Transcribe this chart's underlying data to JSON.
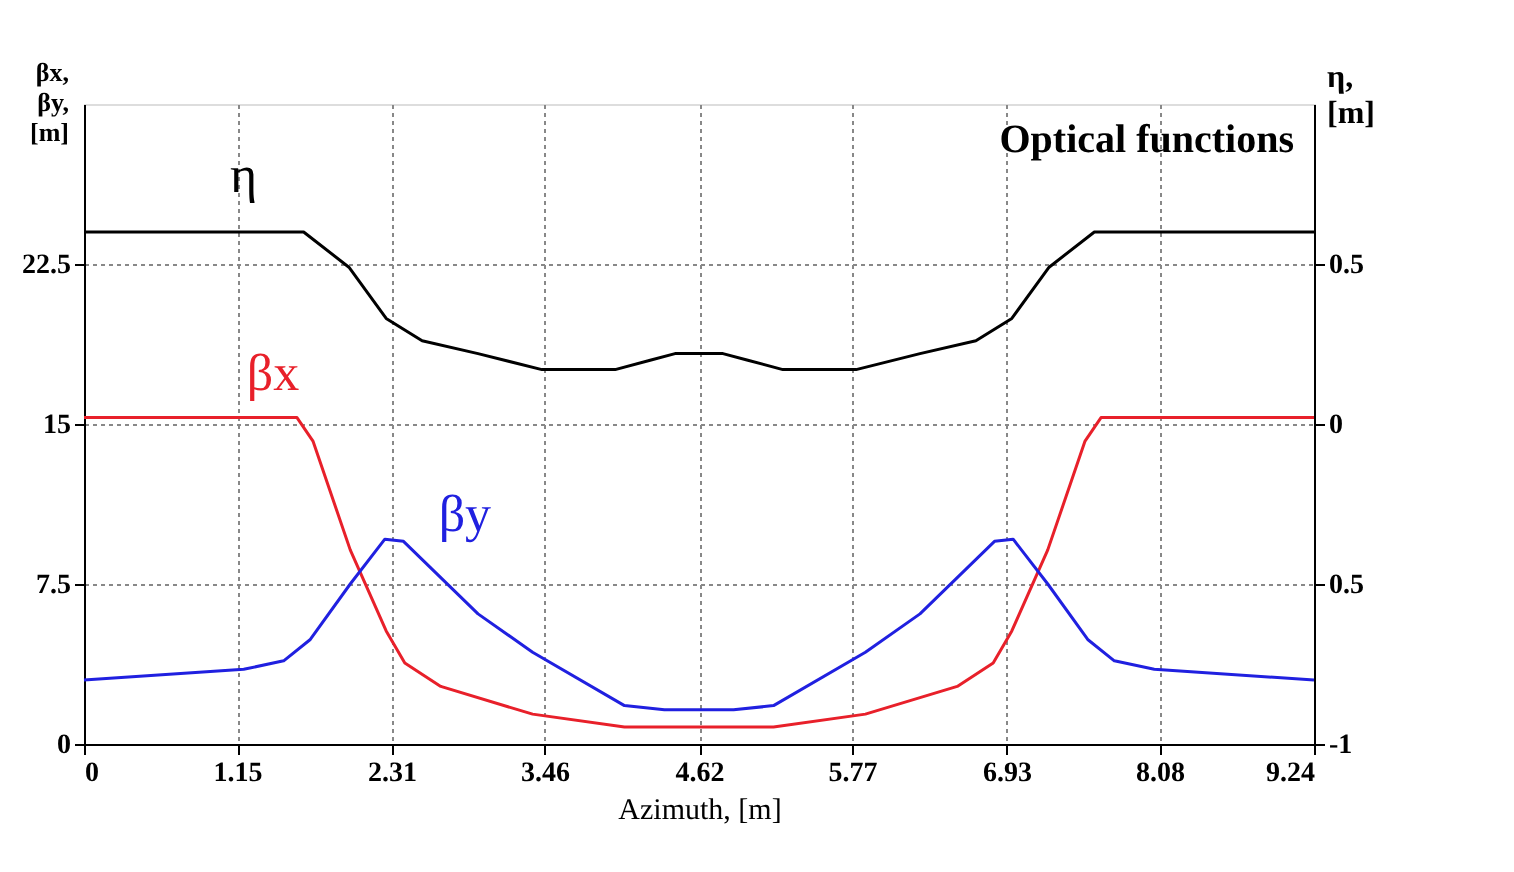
{
  "chart_data": {
    "type": "line",
    "title": "Optical functions",
    "xlabel": "Azimuth, [m]",
    "ylabel": "βx, βy, [m]",
    "y2label": "η, [m]",
    "xlim": [
      0,
      9.24
    ],
    "xticks": [
      0,
      1.15,
      2.31,
      3.46,
      4.62,
      5.77,
      6.93,
      8.08,
      9.24
    ],
    "ylim": [
      0,
      30
    ],
    "yticks": [
      0,
      7.5,
      15,
      22.5
    ],
    "y2lim": [
      -1,
      1
    ],
    "y2ticks": [
      -1,
      {
        "value": -0.5,
        "label": "0.5"
      },
      0,
      0.5
    ],
    "grid": true,
    "series": [
      {
        "name": "η",
        "color": "#000000",
        "axis": "y2",
        "x": [
          0,
          1.65,
          1.99,
          2.27,
          2.54,
          2.96,
          3.44,
          3.99,
          4.26,
          4.44,
          4.62,
          4.8,
          4.98,
          5.25,
          5.8,
          6.28,
          6.7,
          6.97,
          7.25,
          7.59,
          9.24
        ],
        "values": [
          0.6,
          0.6,
          0.49,
          0.33,
          0.26,
          0.22,
          0.17,
          0.17,
          0.2,
          0.22,
          0.22,
          0.22,
          0.2,
          0.17,
          0.17,
          0.22,
          0.26,
          0.33,
          0.49,
          0.6,
          0.6
        ]
      },
      {
        "name": "βx",
        "color": "#e8202a",
        "x": [
          0,
          1.6,
          1.72,
          2.0,
          2.27,
          2.41,
          2.68,
          3.37,
          4.06,
          4.62,
          5.18,
          5.87,
          6.56,
          6.83,
          6.97,
          7.24,
          7.52,
          7.64,
          9.24
        ],
        "values": [
          15.3,
          15.3,
          14.2,
          9.1,
          5.3,
          3.8,
          2.7,
          1.4,
          0.8,
          0.8,
          0.8,
          1.4,
          2.7,
          3.8,
          5.3,
          9.1,
          14.2,
          15.3,
          15.3
        ]
      },
      {
        "name": "βy",
        "color": "#2020e0",
        "x": [
          0,
          1.2,
          1.5,
          1.7,
          2.0,
          2.26,
          2.4,
          2.96,
          3.37,
          4.06,
          4.36,
          4.88,
          5.18,
          5.87,
          6.28,
          6.84,
          6.98,
          7.24,
          7.54,
          7.74,
          8.04,
          9.24
        ],
        "values": [
          3.0,
          3.5,
          3.9,
          4.9,
          7.5,
          9.6,
          9.5,
          6.1,
          4.3,
          1.8,
          1.6,
          1.6,
          1.8,
          4.3,
          6.1,
          9.5,
          9.6,
          7.5,
          4.9,
          3.9,
          3.5,
          3.0
        ]
      }
    ]
  }
}
